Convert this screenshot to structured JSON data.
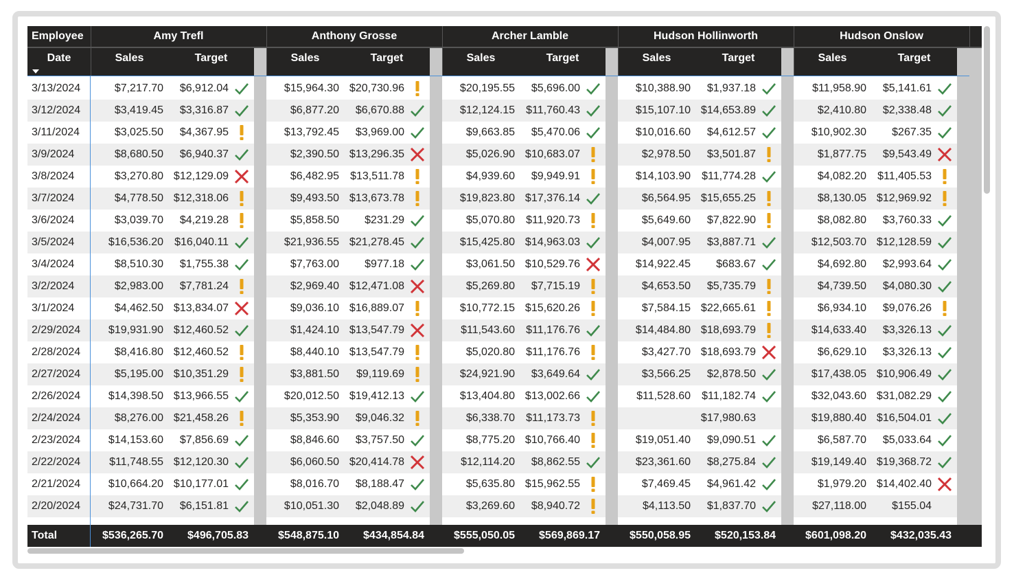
{
  "table": {
    "header": {
      "employee": "Employee",
      "date": "Date",
      "sales": "Sales",
      "target": "Target",
      "total": "Total"
    },
    "employees": [
      {
        "name": "Amy Trefl",
        "total_sales": "$536,265.70",
        "total_target": "$496,705.83"
      },
      {
        "name": "Anthony Grosse",
        "total_sales": "$548,875.10",
        "total_target": "$434,854.84"
      },
      {
        "name": "Archer Lamble",
        "total_sales": "$555,050.05",
        "total_target": "$569,869.17"
      },
      {
        "name": "Hudson Hollinworth",
        "total_sales": "$550,058.95",
        "total_target": "$520,153.84"
      },
      {
        "name": "Hudson Onslow",
        "total_sales": "$601,098.20",
        "total_target": "$432,035.43"
      }
    ],
    "rows": [
      {
        "date": "3/13/2024",
        "cells": [
          [
            "$7,217.70",
            "$6,912.04"
          ],
          [
            "$15,964.30",
            "$20,730.96"
          ],
          [
            "$20,195.55",
            "$5,696.00"
          ],
          [
            "$10,388.90",
            "$1,937.18"
          ],
          [
            "$11,958.90",
            "$5,141.61"
          ]
        ]
      },
      {
        "date": "3/12/2024",
        "cells": [
          [
            "$3,419.45",
            "$3,316.87"
          ],
          [
            "$6,877.20",
            "$6,670.88"
          ],
          [
            "$12,124.15",
            "$11,760.43"
          ],
          [
            "$15,107.10",
            "$14,653.89"
          ],
          [
            "$2,410.80",
            "$2,338.48"
          ]
        ]
      },
      {
        "date": "3/11/2024",
        "cells": [
          [
            "$3,025.50",
            "$4,367.95"
          ],
          [
            "$13,792.45",
            "$3,969.00"
          ],
          [
            "$9,663.85",
            "$5,470.06"
          ],
          [
            "$10,016.60",
            "$4,612.57"
          ],
          [
            "$10,902.30",
            "$267.35"
          ]
        ]
      },
      {
        "date": "3/9/2024",
        "cells": [
          [
            "$8,680.50",
            "$6,940.37"
          ],
          [
            "$2,390.50",
            "$13,296.35"
          ],
          [
            "$5,026.90",
            "$10,683.07"
          ],
          [
            "$2,978.50",
            "$3,501.87"
          ],
          [
            "$1,877.75",
            "$9,543.49"
          ]
        ]
      },
      {
        "date": "3/8/2024",
        "cells": [
          [
            "$3,270.80",
            "$12,129.09"
          ],
          [
            "$6,482.95",
            "$13,511.78"
          ],
          [
            "$4,939.60",
            "$9,949.91"
          ],
          [
            "$14,103.90",
            "$11,774.28"
          ],
          [
            "$4,082.20",
            "$11,405.53"
          ]
        ]
      },
      {
        "date": "3/7/2024",
        "cells": [
          [
            "$4,778.50",
            "$12,318.06"
          ],
          [
            "$9,493.50",
            "$13,673.78"
          ],
          [
            "$19,823.80",
            "$17,376.14"
          ],
          [
            "$6,564.95",
            "$15,655.25"
          ],
          [
            "$8,130.05",
            "$12,969.92"
          ]
        ]
      },
      {
        "date": "3/6/2024",
        "cells": [
          [
            "$3,039.70",
            "$4,219.28"
          ],
          [
            "$5,858.50",
            "$231.29"
          ],
          [
            "$5,070.80",
            "$11,920.73"
          ],
          [
            "$5,649.60",
            "$7,822.90"
          ],
          [
            "$8,082.80",
            "$3,760.33"
          ]
        ]
      },
      {
        "date": "3/5/2024",
        "cells": [
          [
            "$16,536.20",
            "$16,040.11"
          ],
          [
            "$21,936.55",
            "$21,278.45"
          ],
          [
            "$15,425.80",
            "$14,963.03"
          ],
          [
            "$4,007.95",
            "$3,887.71"
          ],
          [
            "$12,503.70",
            "$12,128.59"
          ]
        ]
      },
      {
        "date": "3/4/2024",
        "cells": [
          [
            "$8,510.30",
            "$1,755.38"
          ],
          [
            "$7,763.00",
            "$977.18"
          ],
          [
            "$3,061.50",
            "$10,529.76"
          ],
          [
            "$14,922.45",
            "$683.67"
          ],
          [
            "$4,692.80",
            "$2,993.64"
          ]
        ]
      },
      {
        "date": "3/2/2024",
        "cells": [
          [
            "$2,983.00",
            "$7,781.24"
          ],
          [
            "$2,969.40",
            "$12,471.08"
          ],
          [
            "$5,269.80",
            "$7,715.19"
          ],
          [
            "$4,653.50",
            "$5,735.79"
          ],
          [
            "$4,739.50",
            "$4,080.30"
          ]
        ]
      },
      {
        "date": "3/1/2024",
        "cells": [
          [
            "$4,462.50",
            "$13,834.07"
          ],
          [
            "$9,036.10",
            "$16,889.07"
          ],
          [
            "$10,772.15",
            "$15,620.26"
          ],
          [
            "$7,584.15",
            "$22,665.61"
          ],
          [
            "$6,934.10",
            "$9,076.26"
          ]
        ]
      },
      {
        "date": "2/29/2024",
        "cells": [
          [
            "$19,931.90",
            "$12,460.52"
          ],
          [
            "$1,424.10",
            "$13,547.79"
          ],
          [
            "$11,543.60",
            "$11,176.76"
          ],
          [
            "$14,484.80",
            "$18,693.79"
          ],
          [
            "$14,633.40",
            "$3,326.13"
          ]
        ]
      },
      {
        "date": "2/28/2024",
        "cells": [
          [
            "$8,416.80",
            "$12,460.52"
          ],
          [
            "$8,440.10",
            "$13,547.79"
          ],
          [
            "$5,020.80",
            "$11,176.76"
          ],
          [
            "$3,427.70",
            "$18,693.79"
          ],
          [
            "$6,629.10",
            "$3,326.13"
          ]
        ]
      },
      {
        "date": "2/27/2024",
        "cells": [
          [
            "$5,195.00",
            "$10,351.29"
          ],
          [
            "$3,881.50",
            "$9,119.69"
          ],
          [
            "$24,921.90",
            "$3,649.64"
          ],
          [
            "$3,566.25",
            "$2,878.50"
          ],
          [
            "$17,438.05",
            "$10,906.49"
          ]
        ]
      },
      {
        "date": "2/26/2024",
        "cells": [
          [
            "$14,398.50",
            "$13,966.55"
          ],
          [
            "$20,012.50",
            "$19,412.13"
          ],
          [
            "$13,404.80",
            "$13,002.66"
          ],
          [
            "$11,528.60",
            "$11,182.74"
          ],
          [
            "$32,043.60",
            "$31,082.29"
          ]
        ]
      },
      {
        "date": "2/24/2024",
        "cells": [
          [
            "$8,276.00",
            "$21,458.26"
          ],
          [
            "$5,353.90",
            "$9,046.32"
          ],
          [
            "$6,338.70",
            "$11,173.73"
          ],
          [
            null,
            "$17,980.63"
          ],
          [
            "$19,880.40",
            "$16,504.01"
          ]
        ]
      },
      {
        "date": "2/23/2024",
        "cells": [
          [
            "$14,153.60",
            "$7,856.69"
          ],
          [
            "$8,846.60",
            "$3,757.50"
          ],
          [
            "$8,775.20",
            "$10,766.40"
          ],
          [
            "$19,051.40",
            "$9,090.51"
          ],
          [
            "$6,587.70",
            "$5,033.64"
          ]
        ]
      },
      {
        "date": "2/22/2024",
        "cells": [
          [
            "$11,748.55",
            "$12,120.30"
          ],
          [
            "$6,060.50",
            "$20,414.78"
          ],
          [
            "$12,114.20",
            "$8,862.55"
          ],
          [
            "$23,361.60",
            "$8,275.84"
          ],
          [
            "$19,149.40",
            "$19,368.72"
          ]
        ]
      },
      {
        "date": "2/21/2024",
        "cells": [
          [
            "$10,664.20",
            "$10,177.01"
          ],
          [
            "$8,016.70",
            "$8,188.47"
          ],
          [
            "$5,635.80",
            "$15,962.55"
          ],
          [
            "$7,469.45",
            "$4,961.42"
          ],
          [
            "$1,979.20",
            "$14,402.40"
          ]
        ]
      },
      {
        "date": "2/20/2024",
        "cells": [
          [
            "$24,731.70",
            "$6,151.81"
          ],
          [
            "$10,051.30",
            "$2,048.89"
          ],
          [
            "$3,269.60",
            "$8,940.72"
          ],
          [
            "$4,113.50",
            "$1,837.70"
          ],
          [
            "$27,118.00",
            "$155.04"
          ]
        ]
      }
    ]
  }
}
